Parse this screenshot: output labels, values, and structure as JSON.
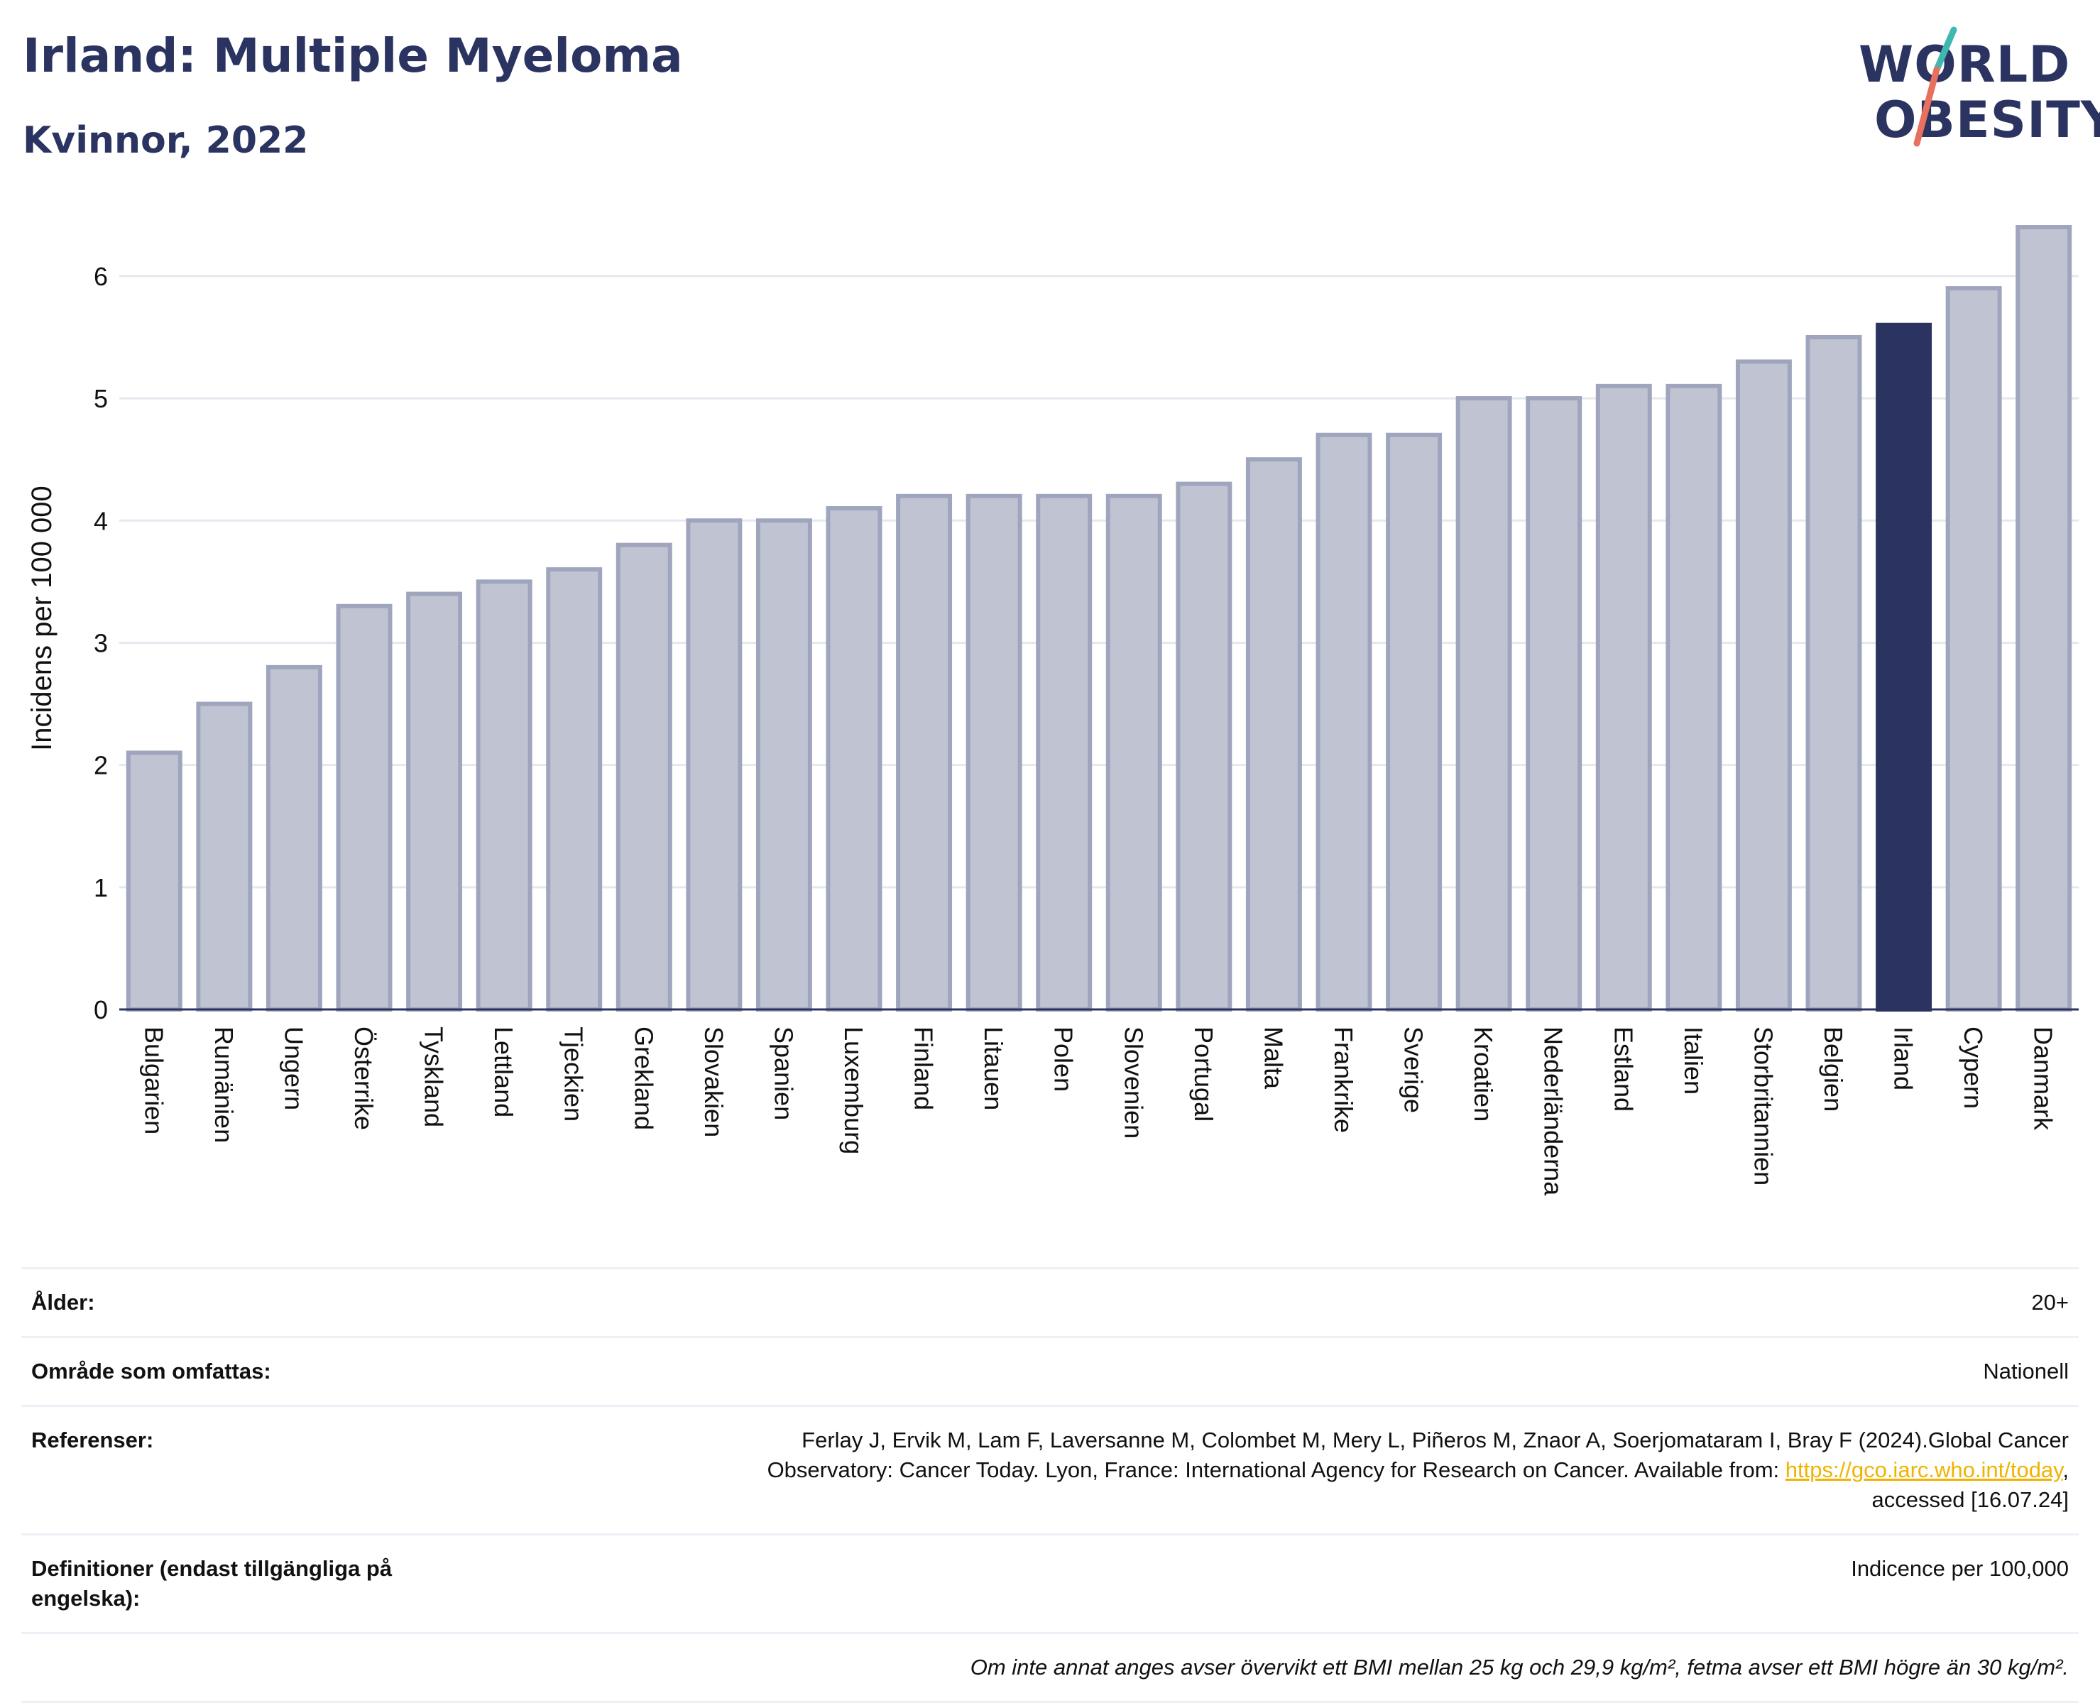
{
  "title": "Irland: Multiple Myeloma",
  "subtitle": "Kvinnor, 2022",
  "logo": {
    "line1": "WORLD",
    "line2": "OBESITY"
  },
  "chart_data": {
    "type": "bar",
    "ylabel": "Incidens per 100 000",
    "xlabel": "",
    "ylim": [
      0,
      6.4
    ],
    "yticks": [
      0,
      1,
      2,
      3,
      4,
      5,
      6
    ],
    "grid": true,
    "highlight": "Irland",
    "categories": [
      "Bulgarien",
      "Rumänien",
      "Ungern",
      "Österrike",
      "Tyskland",
      "Lettland",
      "Tjeckien",
      "Grekland",
      "Slovakien",
      "Spanien",
      "Luxemburg",
      "Finland",
      "Litauen",
      "Polen",
      "Slovenien",
      "Portugal",
      "Malta",
      "Frankrike",
      "Sverige",
      "Kroatien",
      "Nederländerna",
      "Estland",
      "Italien",
      "Storbritannien",
      "Belgien",
      "Irland",
      "Cypern",
      "Danmark"
    ],
    "values": [
      2.1,
      2.5,
      2.8,
      3.3,
      3.4,
      3.5,
      3.6,
      3.8,
      4.0,
      4.0,
      4.1,
      4.2,
      4.2,
      4.2,
      4.2,
      4.3,
      4.5,
      4.7,
      4.7,
      5.0,
      5.0,
      5.1,
      5.1,
      5.3,
      5.5,
      5.6,
      5.9,
      6.4
    ],
    "colors": {
      "bar": "#c0c4d2",
      "bar_border": "#9fa5bd",
      "highlight": "#2b3461",
      "grid": "#e6e8ef",
      "axis": "#2b3461"
    }
  },
  "info": {
    "age_label": "Ålder:",
    "age_value": "20+",
    "area_label": "Område som omfattas:",
    "area_value": "Nationell",
    "ref_label": "Referenser:",
    "ref_text_1": "Ferlay J, Ervik M, Lam F, Laversanne M, Colombet M, Mery L, Piñeros M, Znaor A, Soerjomataram I, Bray F (2024).Global Cancer",
    "ref_text_2": "Observatory: Cancer Today. Lyon, France: International Agency for Research on Cancer. Available from: ",
    "ref_link": "https://gco.iarc.who.int/today",
    "ref_text_3": ",",
    "ref_text_4": "accessed [16.07.24]",
    "def_label": "Definitioner (endast tillgängliga på engelska):",
    "def_value": "Indicence per 100,000",
    "note": "Om inte annat anges avser övervikt ett BMI mellan 25 kg och 29,9 kg/m², fetma avser ett BMI högre än 30 kg/m²."
  }
}
